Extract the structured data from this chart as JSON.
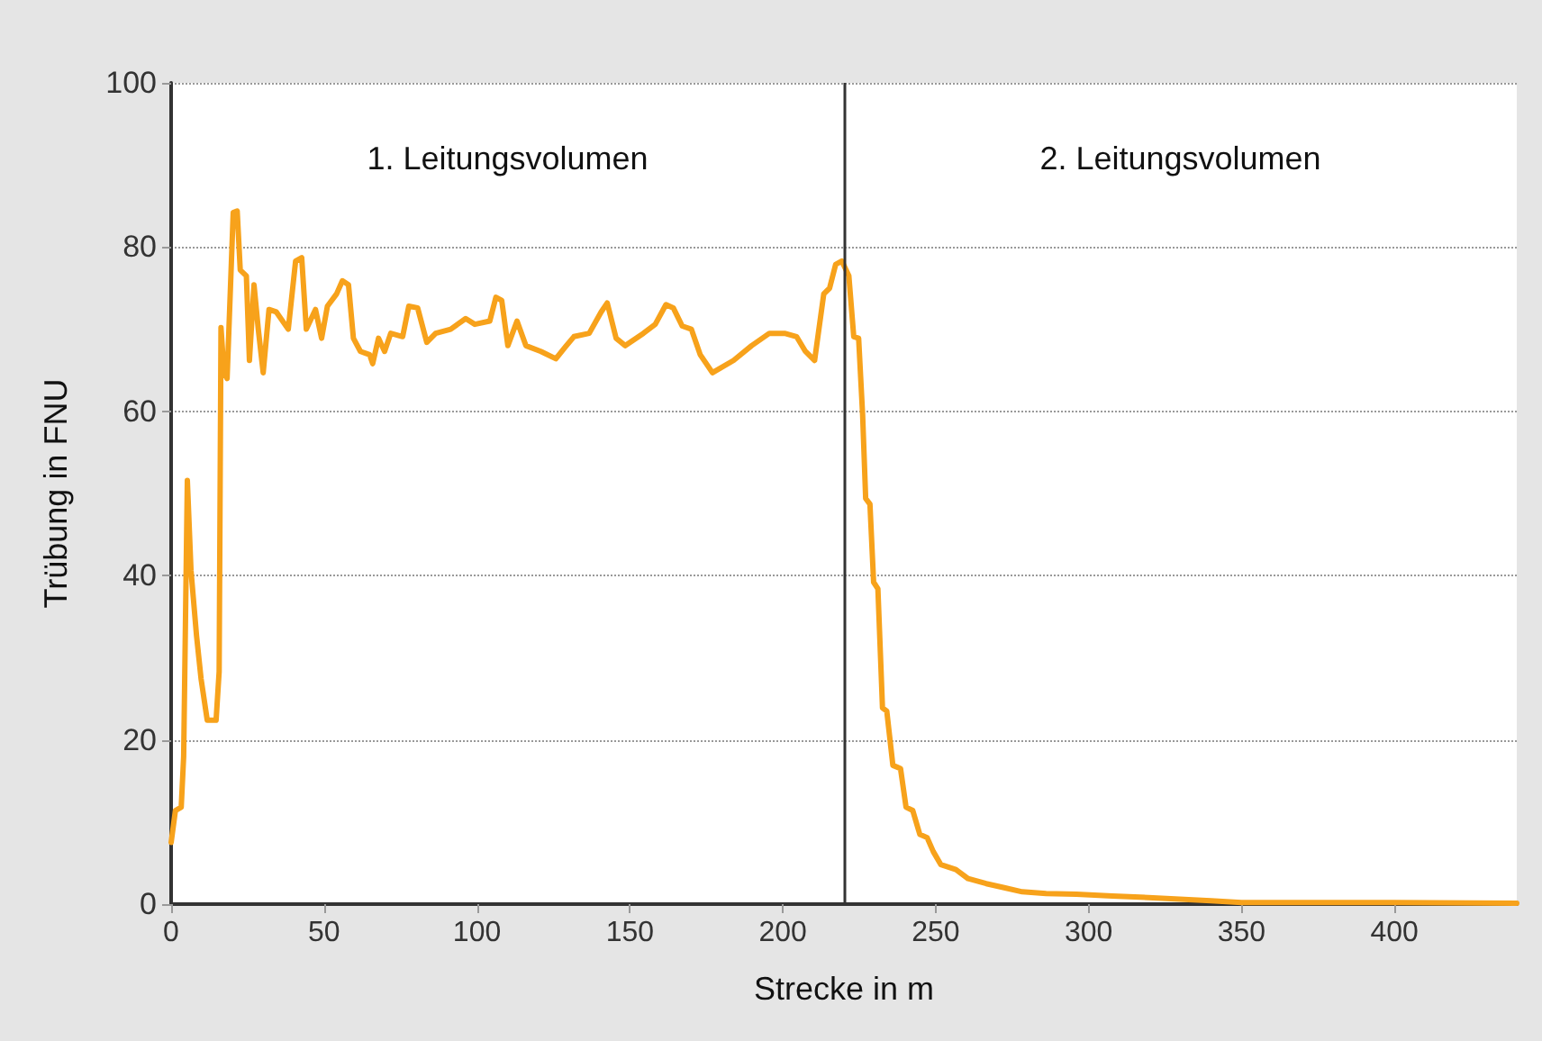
{
  "chart_data": {
    "type": "line",
    "xlabel": "Strecke in m",
    "ylabel": "Trübung in FNU",
    "x": [
      0,
      1.4,
      3.3,
      4.1,
      5.3,
      6.5,
      8.3,
      9.8,
      11.8,
      14.7,
      15.7,
      16.3,
      17.3,
      18.3,
      20.3,
      21.6,
      22.6,
      24.6,
      25.6,
      27.1,
      28.5,
      30.1,
      32,
      34.4,
      38.3,
      40.7,
      42.7,
      44.2,
      47.2,
      49.2,
      51.1,
      54.1,
      56,
      58,
      59.6,
      61.9,
      64.9,
      65.9,
      67.8,
      69.8,
      71.8,
      75.7,
      77.7,
      80.6,
      83.6,
      86.5,
      91.4,
      96.3,
      99.3,
      104.2,
      106.2,
      108.1,
      110.1,
      113.1,
      116,
      120.9,
      125.8,
      128.8,
      131.7,
      136.7,
      140.6,
      142.6,
      145.5,
      148.5,
      154.4,
      158.3,
      161.8,
      164.2,
      167.1,
      170.1,
      173,
      177,
      183.9,
      189.8,
      195.6,
      200.6,
      204.5,
      207.4,
      210.4,
      213.4,
      215.3,
      217.3,
      219.3,
      221.6,
      223.2,
      224.8,
      226.1,
      227.1,
      228.5,
      229.7,
      231.1,
      232.6,
      234,
      236,
      238.5,
      240.3,
      242.5,
      244.8,
      247.2,
      249.2,
      251.7,
      256.6,
      260.6,
      266.5,
      272.4,
      278.3,
      286.1,
      296,
      307.8,
      319.6,
      340,
      350,
      400,
      440
    ],
    "series": [
      {
        "color": "#f7a21b",
        "values": [
          7.5,
          11.4,
          11.8,
          18,
          51.6,
          40.6,
          32.7,
          27.4,
          22.4,
          22.4,
          28.3,
          70.2,
          64.7,
          64,
          84.2,
          84.4,
          77.2,
          76.5,
          66.2,
          75.4,
          70,
          64.7,
          72.4,
          72.1,
          70,
          78.3,
          78.7,
          70,
          72.4,
          68.9,
          72.8,
          74.3,
          75.9,
          75.4,
          68.9,
          67.3,
          66.9,
          65.8,
          68.9,
          67.3,
          69.5,
          69.1,
          72.8,
          72.6,
          68.4,
          69.5,
          70,
          71.3,
          70.6,
          71,
          73.9,
          73.5,
          68,
          71,
          68,
          67.3,
          66.4,
          67.8,
          69.1,
          69.5,
          72.1,
          73.2,
          68.9,
          68,
          69.5,
          70.6,
          73,
          72.6,
          70.4,
          70,
          66.9,
          64.7,
          66.2,
          68,
          69.5,
          69.5,
          69.1,
          67.3,
          66.2,
          74.3,
          75,
          77.9,
          78.3,
          76.5,
          69.1,
          68.9,
          59.6,
          49.4,
          48.7,
          39.2,
          38.4,
          23.9,
          23.5,
          16.9,
          16.5,
          11.8,
          11.4,
          8.5,
          8.1,
          6.4,
          4.8,
          4.2,
          3.1,
          2.5,
          2,
          1.5,
          1.3,
          1.2,
          1,
          0.8,
          0.4,
          0.2,
          0.2,
          0.1
        ]
      }
    ],
    "xlim": [
      0,
      440
    ],
    "xticks": [
      0,
      50,
      100,
      150,
      200,
      250,
      300,
      350,
      400
    ],
    "ylim": [
      0,
      100
    ],
    "yticks": [
      0,
      20,
      40,
      60,
      80,
      100
    ],
    "grid": "y",
    "marker": "none",
    "line_style": "solid",
    "ref_lines": [
      {
        "axis": "x",
        "value": 220,
        "color": "#333333",
        "line_style": "solid"
      }
    ],
    "annotations": [
      "1. Leitungsvolumen",
      "2. Leitungsvolumen"
    ]
  }
}
